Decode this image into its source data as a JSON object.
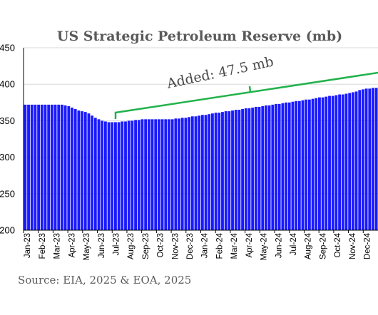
{
  "chart_data": {
    "type": "bar",
    "title": "US Strategic Petroleum Reserve  (mb)",
    "xlabel": "",
    "ylabel": "",
    "ylim": [
      200,
      450
    ],
    "yticks": [
      200,
      250,
      300,
      350,
      400,
      450
    ],
    "grid": true,
    "bar_color": "#1a1aff",
    "annotation": {
      "text": "Added: 47.5 mb",
      "color": "#22b24c"
    },
    "source": "Source: EIA, 2025 & EOA, 2025",
    "tick_labels": [
      "Jan-23",
      "Feb-23",
      "Mar-23",
      "Apr-23",
      "May-23",
      "Jun-23",
      "Jul-23",
      "Aug-23",
      "Sep-23",
      "Oct-23",
      "Nov-23",
      "Dec-23",
      "Jan-24",
      "Feb-24",
      "Mar-24",
      "Apr-24",
      "May-24",
      "Jun-24",
      "Jul-24",
      "Aug-24",
      "Sep-24",
      "Oct-24",
      "Nov-24",
      "Dec-24"
    ],
    "values": [
      372,
      372,
      372,
      372,
      372,
      372,
      372,
      372,
      372,
      372,
      372,
      372,
      371,
      370,
      368,
      366,
      364,
      363,
      362,
      360,
      357,
      354,
      352,
      350,
      349,
      348,
      348,
      348,
      348,
      349,
      349,
      350,
      350,
      351,
      351,
      352,
      352,
      352,
      352,
      352,
      352,
      352,
      352,
      352,
      352,
      353,
      353,
      354,
      354,
      355,
      356,
      356,
      357,
      358,
      358,
      359,
      360,
      361,
      361,
      362,
      363,
      363,
      364,
      365,
      365,
      366,
      367,
      367,
      368,
      369,
      369,
      370,
      371,
      371,
      372,
      373,
      373,
      374,
      375,
      375,
      376,
      377,
      377,
      378,
      379,
      379,
      380,
      381,
      382,
      382,
      383,
      384,
      384,
      385,
      386,
      386,
      387,
      388,
      389,
      390,
      392,
      393,
      394,
      394,
      395,
      395
    ]
  }
}
